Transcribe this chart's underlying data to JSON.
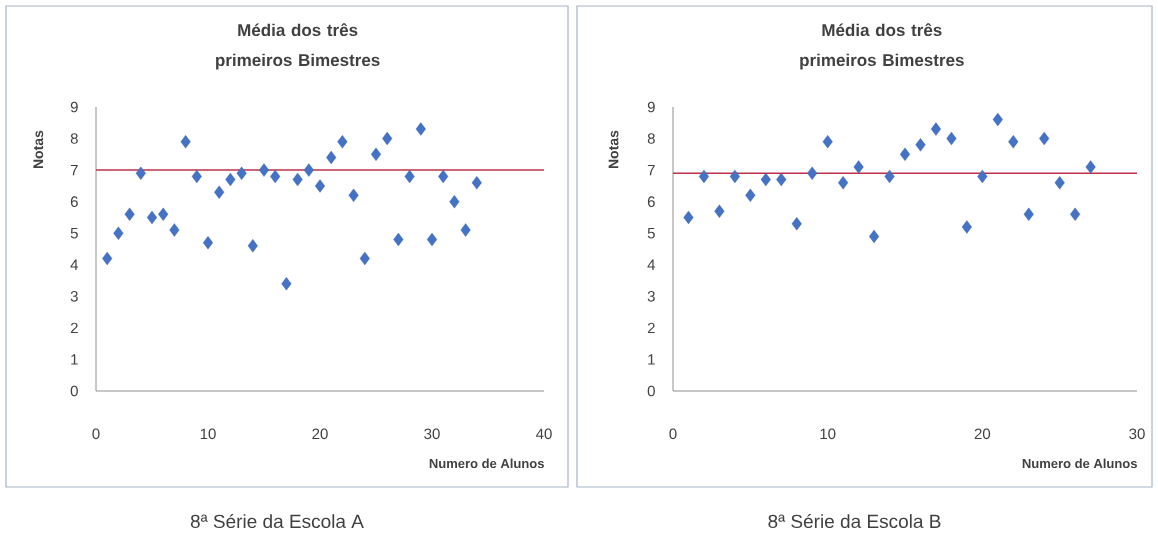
{
  "chart_data": [
    {
      "type": "scatter",
      "title": "Média dos três primeiros Bimestres",
      "xlabel": "Numero de Alunos",
      "ylabel": "Notas",
      "x": [
        1,
        2,
        3,
        4,
        5,
        6,
        7,
        8,
        9,
        10,
        11,
        12,
        13,
        14,
        15,
        16,
        17,
        18,
        19,
        20,
        21,
        22,
        23,
        24,
        25,
        26,
        27,
        28,
        29,
        30,
        31,
        32,
        33,
        34
      ],
      "values": [
        4.2,
        5.0,
        5.6,
        6.9,
        5.5,
        5.6,
        5.1,
        7.9,
        6.8,
        4.7,
        6.3,
        6.7,
        6.9,
        4.6,
        7.0,
        6.8,
        3.4,
        6.7,
        7.0,
        6.5,
        7.4,
        7.9,
        6.2,
        4.2,
        7.5,
        8.0,
        4.8,
        6.8,
        8.3,
        4.8,
        6.8,
        6.0,
        5.1,
        6.6
      ],
      "color": "#4472c4",
      "marker": "diamond",
      "grid": false,
      "xlim": [
        0,
        40
      ],
      "ylim": [
        0,
        9
      ],
      "xticks": [
        0,
        10,
        20,
        30,
        40
      ],
      "yticks": [
        0,
        1,
        2,
        3,
        4,
        5,
        6,
        7,
        8,
        9
      ],
      "ref_lines": [
        {
          "axis": "y",
          "value": 7.0,
          "color": "#c0304a"
        }
      ],
      "annotations": [
        "8ª Série da Escola A"
      ]
    },
    {
      "type": "scatter",
      "title": "Média dos três primeiros Bimestres",
      "xlabel": "Numero de Alunos",
      "ylabel": "Notas",
      "x": [
        1,
        2,
        3,
        4,
        5,
        6,
        7,
        8,
        9,
        10,
        11,
        12,
        13,
        14,
        15,
        16,
        17,
        18,
        19,
        20,
        21,
        22,
        23,
        24,
        25,
        26,
        27
      ],
      "values": [
        5.5,
        6.8,
        5.7,
        6.8,
        6.2,
        6.7,
        6.7,
        5.3,
        6.9,
        7.9,
        6.6,
        7.1,
        4.9,
        6.8,
        7.5,
        7.8,
        8.3,
        8.0,
        5.2,
        6.8,
        8.6,
        7.9,
        5.6,
        8.0,
        6.6,
        5.6,
        7.1
      ],
      "color": "#4472c4",
      "marker": "diamond",
      "grid": false,
      "xlim": [
        0,
        30
      ],
      "ylim": [
        0,
        9
      ],
      "xticks": [
        0,
        10,
        20,
        30
      ],
      "yticks": [
        0,
        1,
        2,
        3,
        4,
        5,
        6,
        7,
        8,
        9
      ],
      "ref_lines": [
        {
          "axis": "y",
          "value": 6.9,
          "color": "#c0304a"
        }
      ],
      "annotations": [
        "8ª Série da Escola B"
      ]
    }
  ]
}
